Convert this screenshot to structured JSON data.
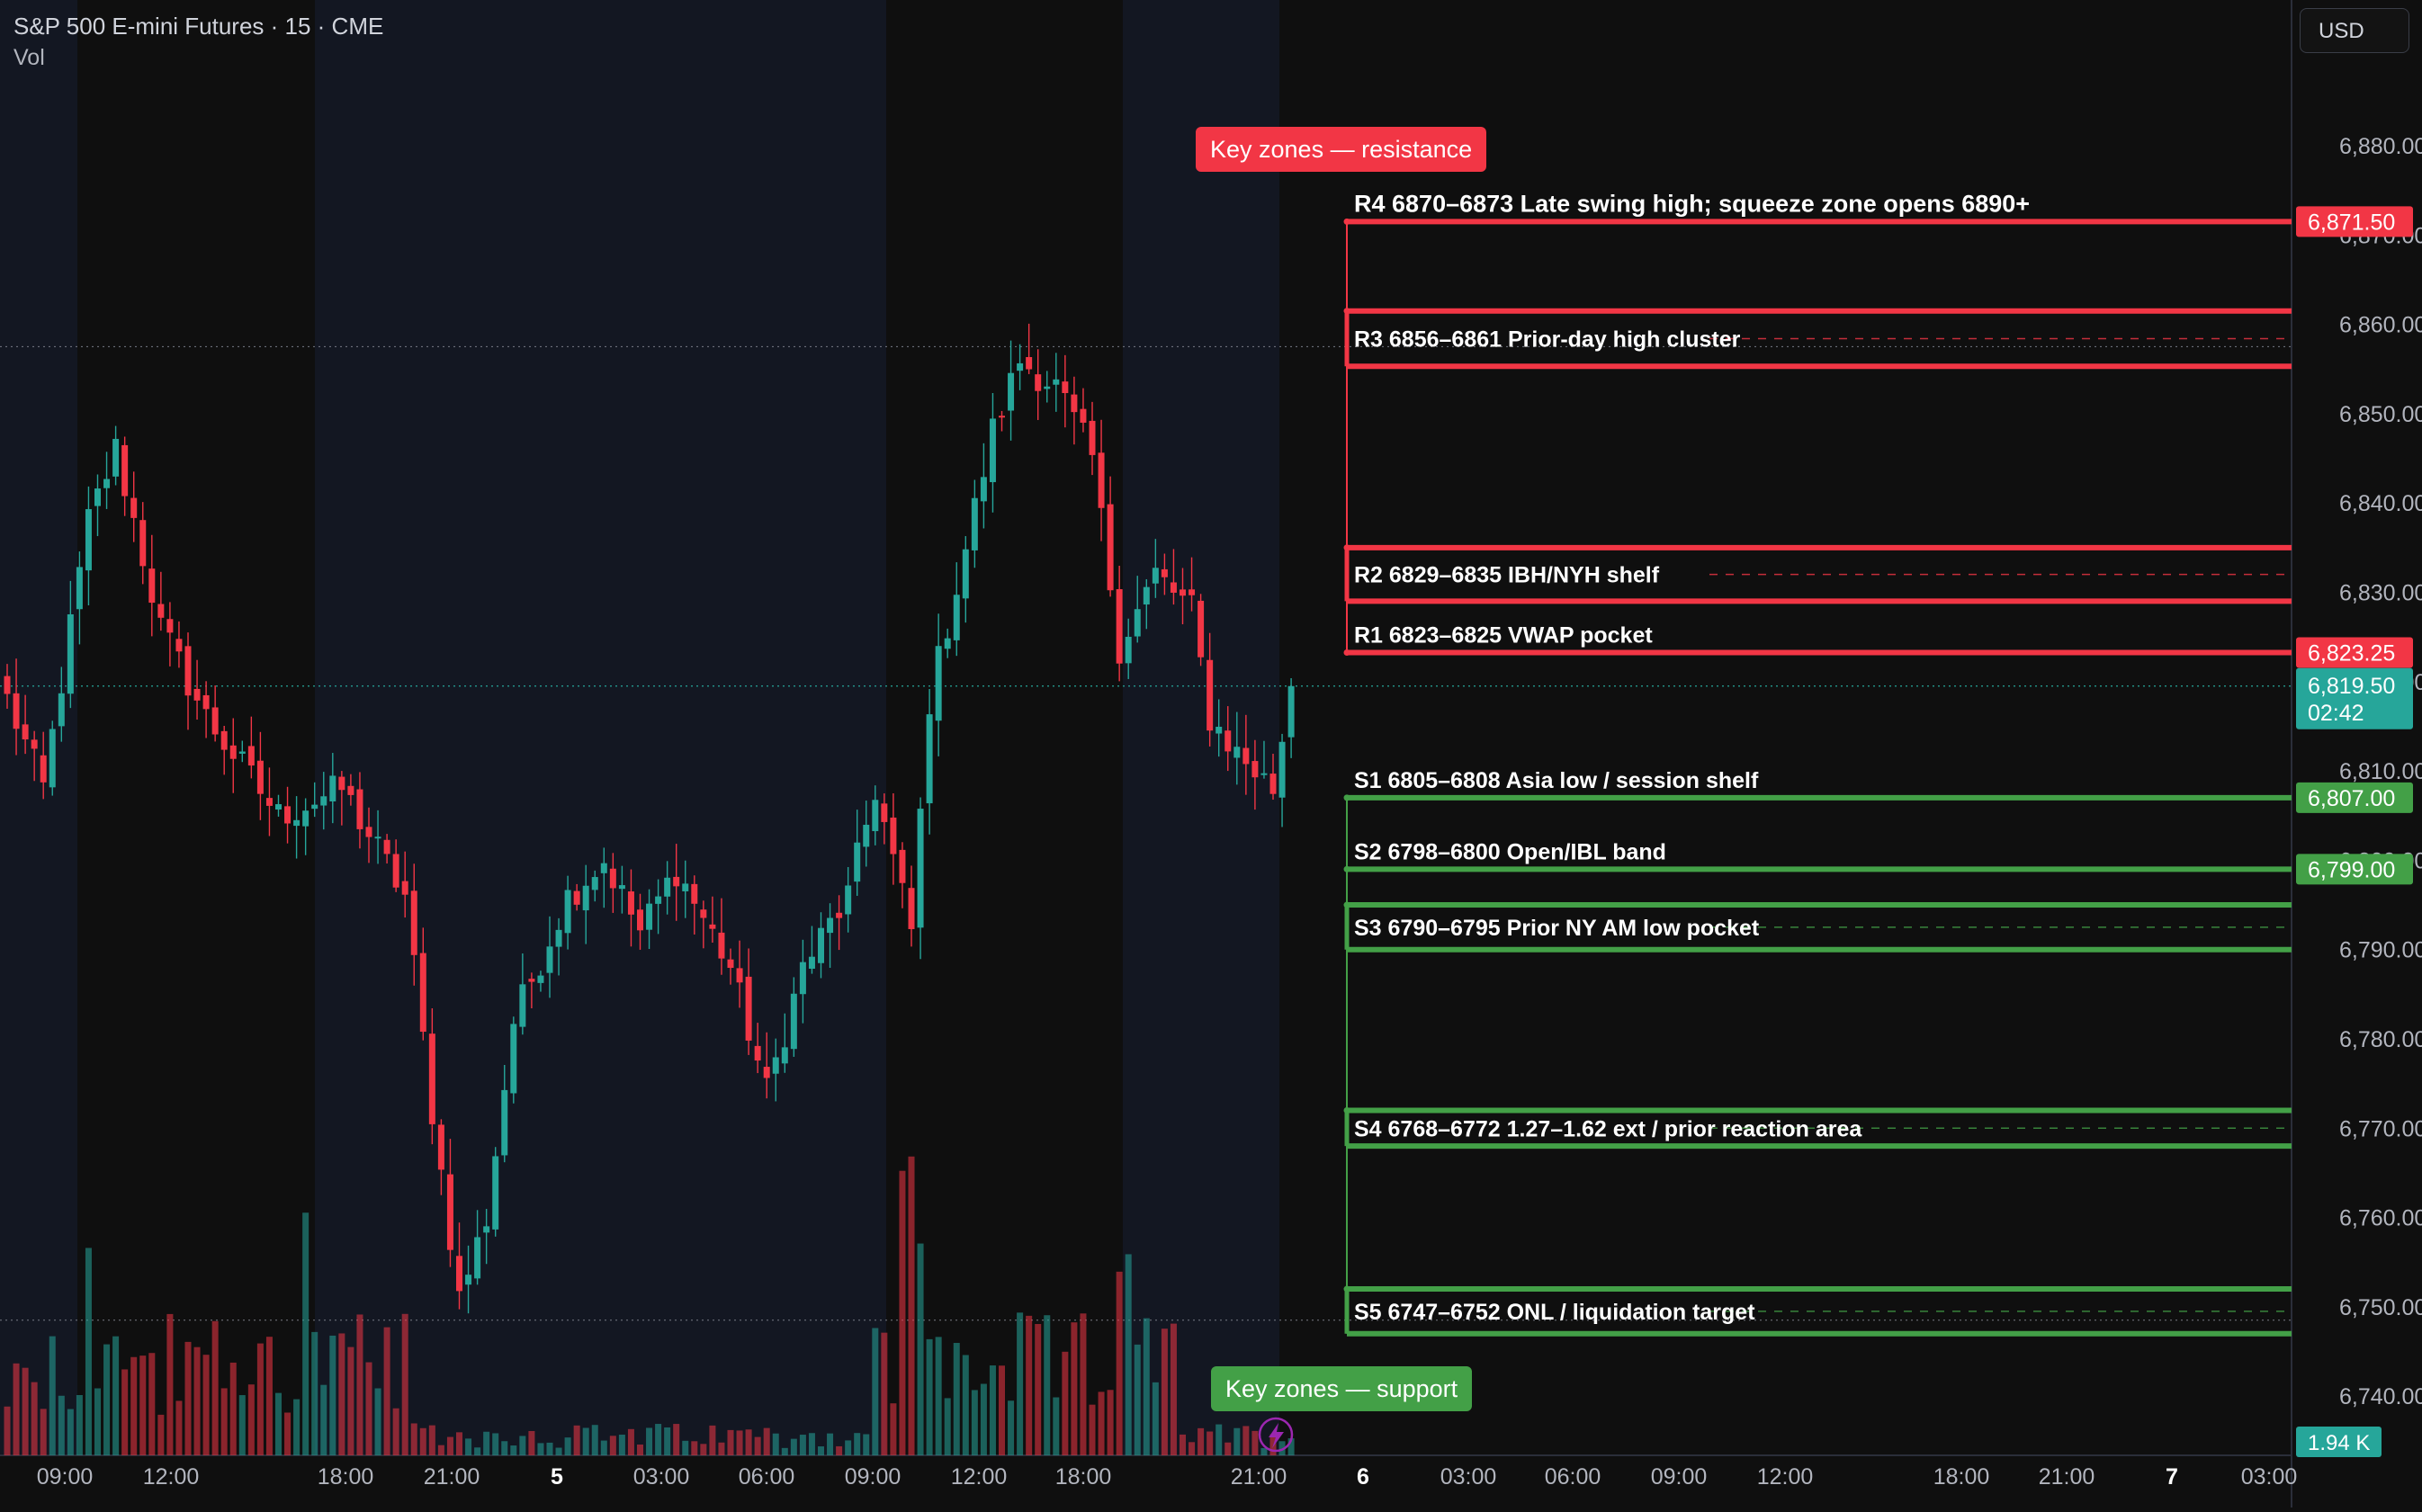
{
  "header": {
    "symbol": "S&P 500 E-mini Futures · 15 · CME",
    "volume_label": "Vol",
    "currency": "USD"
  },
  "colors": {
    "background": "#0f0f0f",
    "session_shade": "#131722",
    "up": "#26a69a",
    "down": "#f23645",
    "resistance": "#f23645",
    "support": "#43a047",
    "text": "#d1d4dc"
  },
  "callouts": {
    "resistance": "Key zones — resistance",
    "support": "Key zones — support"
  },
  "chart_data": {
    "type": "candlestick",
    "symbol": "S&P 500 E-mini Futures",
    "interval": "15",
    "exchange": "CME",
    "ylim": [
      6735,
      6888
    ],
    "y_ticks": [
      "6,740.00",
      "6,750.00",
      "6,760.00",
      "6,770.00",
      "6,780.00",
      "6,790.00",
      "6,800.00",
      "6,810.00",
      "6,820.00",
      "6,830.00",
      "6,840.00",
      "6,850.00",
      "6,860.00",
      "6,870.00",
      "6,880.00"
    ],
    "x_ticks": [
      "09:00",
      "12:00",
      "18:00",
      "21:00",
      "5",
      "03:00",
      "06:00",
      "09:00",
      "12:00",
      "18:00",
      "21:00",
      "6",
      "03:00",
      "06:00",
      "09:00",
      "12:00",
      "18:00",
      "21:00",
      "7",
      "03:00"
    ],
    "bold_x_ticks": [
      "5",
      "6",
      "7"
    ],
    "close_anchors": [
      {
        "bar": 0,
        "close": 6818
      },
      {
        "bar": 4,
        "close": 6808
      },
      {
        "bar": 9,
        "close": 6838
      },
      {
        "bar": 12,
        "close": 6846
      },
      {
        "bar": 17,
        "close": 6826
      },
      {
        "bar": 22,
        "close": 6816
      },
      {
        "bar": 30,
        "close": 6805
      },
      {
        "bar": 37,
        "close": 6808
      },
      {
        "bar": 44,
        "close": 6796
      },
      {
        "bar": 47,
        "close": 6772
      },
      {
        "bar": 50,
        "close": 6751
      },
      {
        "bar": 53,
        "close": 6760
      },
      {
        "bar": 56,
        "close": 6782
      },
      {
        "bar": 62,
        "close": 6796
      },
      {
        "bar": 66,
        "close": 6800
      },
      {
        "bar": 70,
        "close": 6792
      },
      {
        "bar": 74,
        "close": 6799
      },
      {
        "bar": 80,
        "close": 6788
      },
      {
        "bar": 84,
        "close": 6774
      },
      {
        "bar": 88,
        "close": 6788
      },
      {
        "bar": 93,
        "close": 6796
      },
      {
        "bar": 96,
        "close": 6808
      },
      {
        "bar": 100,
        "close": 6792
      },
      {
        "bar": 102,
        "close": 6818
      },
      {
        "bar": 106,
        "close": 6835
      },
      {
        "bar": 109,
        "close": 6848
      },
      {
        "bar": 112,
        "close": 6856
      },
      {
        "bar": 116,
        "close": 6853
      },
      {
        "bar": 120,
        "close": 6845
      },
      {
        "bar": 123,
        "close": 6824
      },
      {
        "bar": 127,
        "close": 6832
      },
      {
        "bar": 131,
        "close": 6828
      },
      {
        "bar": 133,
        "close": 6816
      },
      {
        "bar": 136,
        "close": 6812
      },
      {
        "bar": 140,
        "close": 6808
      },
      {
        "bar": 142,
        "close": 6819.5
      }
    ],
    "volume_spike_bars": [
      9,
      33,
      99,
      100,
      101,
      123,
      124
    ],
    "last_price": "6,819.50",
    "countdown": "02:42",
    "last_volume": "1.94 K",
    "price_labels": [
      {
        "text": "6,871.50",
        "price": 6871.5,
        "kind": "resistance"
      },
      {
        "text": "6,823.25",
        "price": 6823.25,
        "kind": "resistance"
      },
      {
        "text": "6,807.00",
        "price": 6807.0,
        "kind": "support"
      },
      {
        "text": "6,799.00",
        "price": 6799.0,
        "kind": "support"
      }
    ],
    "zones": [
      {
        "id": "R4",
        "label": "R4 6870–6873 Late swing high; squeeze zone opens 6890+",
        "kind": "resistance",
        "lines": [
          6871.5
        ],
        "dashed": false
      },
      {
        "id": "R3",
        "label": "R3 6856–6861 Prior-day high cluster",
        "kind": "resistance",
        "lines": [
          6855.3,
          6861.5
        ],
        "dashed": true
      },
      {
        "id": "R2",
        "label": "R2 6829–6835 IBH/NYH shelf",
        "kind": "resistance",
        "lines": [
          6829.0,
          6835.0
        ],
        "dashed": true
      },
      {
        "id": "R1",
        "label": "R1 6823–6825 VWAP pocket",
        "kind": "resistance",
        "lines": [
          6823.25
        ],
        "dashed": false
      },
      {
        "id": "S1",
        "label": "S1 6805–6808 Asia low / session shelf",
        "kind": "support",
        "lines": [
          6807.0
        ],
        "dashed": false
      },
      {
        "id": "S2",
        "label": "S2 6798–6800 Open/IBL band",
        "kind": "support",
        "lines": [
          6799.0
        ],
        "dashed": false
      },
      {
        "id": "S3",
        "label": "S3 6790–6795 Prior NY AM low pocket",
        "kind": "support",
        "lines": [
          6790.0,
          6795.0
        ],
        "dashed": true
      },
      {
        "id": "S4",
        "label": "S4 6768–6772 1.27–1.62 ext / prior reaction area",
        "kind": "support",
        "lines": [
          6768.0,
          6772.0
        ],
        "dashed": true
      },
      {
        "id": "S5",
        "label": "S5 6747–6752 ONL / liquidation target",
        "kind": "support",
        "lines": [
          6747.0,
          6752.0
        ],
        "dashed": true
      }
    ]
  }
}
